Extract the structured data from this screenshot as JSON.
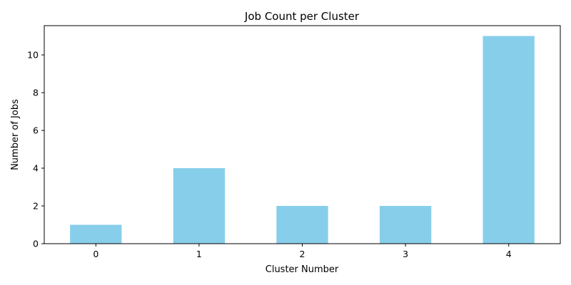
{
  "chart_data": {
    "type": "bar",
    "title": "Job Count per Cluster",
    "xlabel": "Cluster Number",
    "ylabel": "Number of Jobs",
    "categories": [
      "0",
      "1",
      "2",
      "3",
      "4"
    ],
    "values": [
      1,
      4,
      2,
      2,
      11
    ],
    "ylim": [
      0,
      11.55
    ],
    "yticks": [
      0,
      2,
      4,
      6,
      8,
      10
    ],
    "bar_color": "#87CEEB",
    "grid": false,
    "legend": "none"
  }
}
